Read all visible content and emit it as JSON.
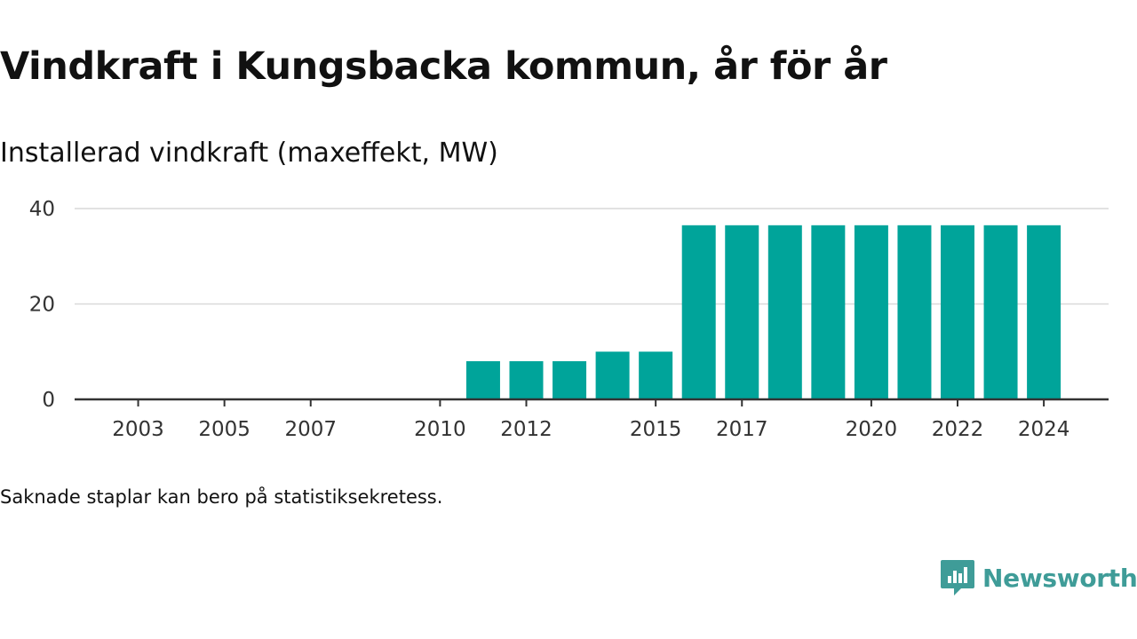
{
  "title": "Vindkraft i Kungsbacka kommun, år för år",
  "subtitle": "Installerad vindkraft (maxeffekt, MW)",
  "footnote": "Saknade staplar kan bero på statistiksekretess.",
  "brand": {
    "name": "Newsworthy",
    "color": "#3f9c98",
    "logo_icon": "newsworthy-chart-bubble-icon"
  },
  "colors": {
    "bar": "#00a49a",
    "grid": "#d9d9d9",
    "axis": "#333333"
  },
  "chart_data": {
    "type": "bar",
    "title": "Vindkraft i Kungsbacka kommun, år för år",
    "subtitle": "Installerad vindkraft (maxeffekt, MW)",
    "xlabel": "",
    "ylabel": "",
    "ylim": [
      0,
      40
    ],
    "yticks": [
      0,
      20,
      40
    ],
    "grid": true,
    "legend": "none",
    "categories": [
      "2002",
      "2003",
      "2004",
      "2005",
      "2006",
      "2007",
      "2008",
      "2009",
      "2010",
      "2011",
      "2012",
      "2013",
      "2014",
      "2015",
      "2016",
      "2017",
      "2018",
      "2019",
      "2020",
      "2021",
      "2022",
      "2023",
      "2024"
    ],
    "xtick_labels": [
      "2003",
      "2005",
      "2007",
      "2010",
      "2012",
      "2015",
      "2017",
      "2020",
      "2022",
      "2024"
    ],
    "values": [
      0,
      0,
      0,
      0,
      0,
      0,
      0,
      0,
      0,
      8,
      8,
      8,
      10,
      10,
      36.5,
      36.5,
      36.5,
      36.5,
      36.5,
      36.5,
      36.5,
      36.5,
      36.5
    ]
  }
}
